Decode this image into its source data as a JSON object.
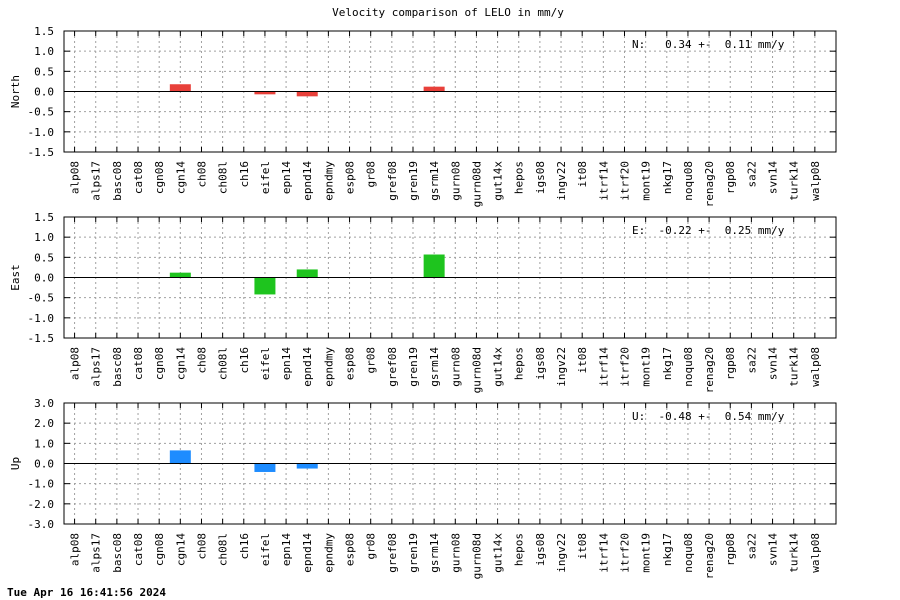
{
  "title": "Velocity comparison of LELO in mm/y",
  "timestamp": "Tue Apr 16 16:41:56 2024",
  "colors": {
    "north": "#e8403a",
    "east": "#1ec41e",
    "up": "#1e8cff"
  },
  "chart_data": [
    {
      "type": "bar",
      "ylabel": "North",
      "ylim": [
        -1.5,
        1.5
      ],
      "yticks": [
        "1.5",
        "1.0",
        "0.5",
        "0.0",
        "-0.5",
        "-1.0",
        "-1.5"
      ],
      "stat": "N:   0.34 +-  0.11 mm/y",
      "categories": [
        "alp08",
        "alps17",
        "basc08",
        "cat08",
        "cgn08",
        "cgn14",
        "ch08",
        "ch08l",
        "ch16",
        "eifel",
        "epn14",
        "epnd14",
        "epndmy",
        "esp08",
        "gr08",
        "gref08",
        "gren19",
        "gsrm14",
        "gurn08",
        "gurn08d",
        "gut14x",
        "hepos",
        "igs08",
        "ingv22",
        "it08",
        "itrf14",
        "itrf20",
        "mont19",
        "nkg17",
        "noqu08",
        "renag20",
        "rgp08",
        "sa22",
        "svn14",
        "turk14",
        "walp08"
      ],
      "values": [
        0,
        0,
        0,
        0,
        0,
        0.18,
        0,
        0,
        0,
        -0.07,
        0,
        -0.12,
        0,
        0,
        0,
        0,
        0,
        0.12,
        0,
        0,
        0,
        0,
        0,
        0,
        0,
        0,
        0,
        0,
        0,
        0,
        0,
        0,
        0,
        0,
        0,
        0
      ],
      "grid": true
    },
    {
      "type": "bar",
      "ylabel": "East",
      "ylim": [
        -1.5,
        1.5
      ],
      "yticks": [
        "1.5",
        "1.0",
        "0.5",
        "0.0",
        "-0.5",
        "-1.0",
        "-1.5"
      ],
      "stat": "E:  -0.22 +-  0.25 mm/y",
      "categories": [
        "alp08",
        "alps17",
        "basc08",
        "cat08",
        "cgn08",
        "cgn14",
        "ch08",
        "ch08l",
        "ch16",
        "eifel",
        "epn14",
        "epnd14",
        "epndmy",
        "esp08",
        "gr08",
        "gref08",
        "gren19",
        "gsrm14",
        "gurn08",
        "gurn08d",
        "gut14x",
        "hepos",
        "igs08",
        "ingv22",
        "it08",
        "itrf14",
        "itrf20",
        "mont19",
        "nkg17",
        "noqu08",
        "renag20",
        "rgp08",
        "sa22",
        "svn14",
        "turk14",
        "walp08"
      ],
      "values": [
        0,
        0,
        0,
        0,
        0,
        0.12,
        0,
        0,
        0,
        -0.42,
        0,
        0.2,
        0,
        0,
        0,
        0,
        0,
        0.57,
        0,
        0,
        0,
        0,
        0,
        0,
        0,
        0,
        0,
        0,
        0,
        0,
        0,
        0,
        0,
        0,
        0,
        0
      ],
      "grid": true
    },
    {
      "type": "bar",
      "ylabel": "Up",
      "ylim": [
        -3.0,
        3.0
      ],
      "yticks": [
        "3.0",
        "2.0",
        "1.0",
        "0.0",
        "-1.0",
        "-2.0",
        "-3.0"
      ],
      "stat": "U:  -0.48 +-  0.54 mm/y",
      "categories": [
        "alp08",
        "alps17",
        "basc08",
        "cat08",
        "cgn08",
        "cgn14",
        "ch08",
        "ch08l",
        "ch16",
        "eifel",
        "epn14",
        "epnd14",
        "epndmy",
        "esp08",
        "gr08",
        "gref08",
        "gren19",
        "gsrm14",
        "gurn08",
        "gurn08d",
        "gut14x",
        "hepos",
        "igs08",
        "ingv22",
        "it08",
        "itrf14",
        "itrf20",
        "mont19",
        "nkg17",
        "noqu08",
        "renag20",
        "rgp08",
        "sa22",
        "svn14",
        "turk14",
        "walp08"
      ],
      "values": [
        0,
        0,
        0,
        0,
        0,
        0.65,
        0,
        0,
        0,
        -0.42,
        0,
        -0.25,
        0,
        0,
        0,
        0,
        0,
        0,
        0,
        0,
        0,
        0,
        0,
        0,
        0,
        0,
        0,
        0,
        0,
        0,
        0,
        0,
        0,
        0,
        0,
        0
      ],
      "grid": true
    }
  ]
}
